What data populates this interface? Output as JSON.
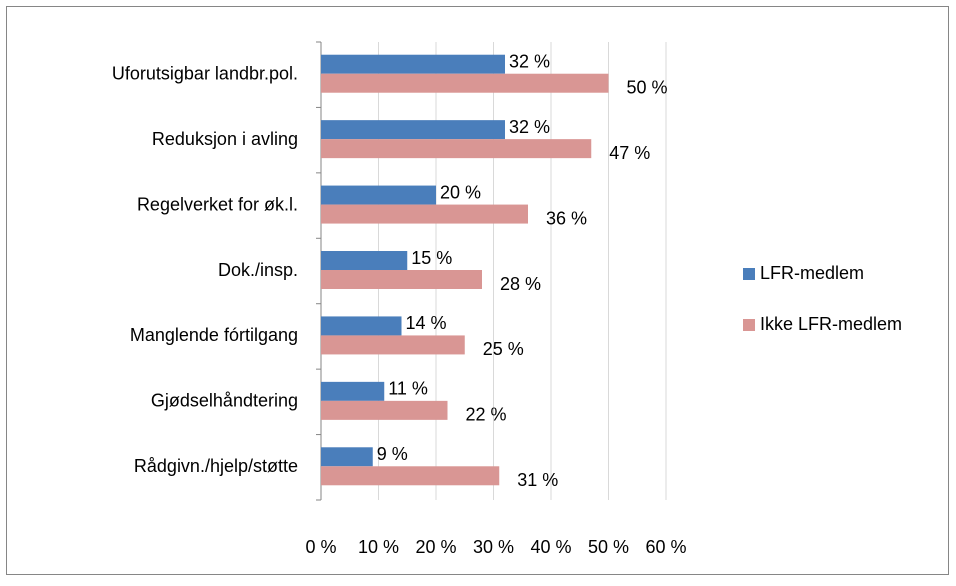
{
  "chart_data": {
    "type": "hbar",
    "categories": [
      "Uforutsigbar landbr.pol.",
      "Reduksjon i avling",
      "Regelverket for øk.l.",
      "Dok./insp.",
      "Manglende fórtilgang",
      "Gjødselhåndtering",
      "Rådgivn./hjelp/støtte"
    ],
    "series": [
      {
        "name": "LFR-medlem",
        "color": "#4a7ebb",
        "values": [
          32,
          32,
          20,
          15,
          14,
          11,
          9
        ],
        "value_labels": [
          "32 %",
          "32 %",
          "20 %",
          "15 %",
          "14 %",
          "11 %",
          "9 %"
        ]
      },
      {
        "name": "Ikke LFR-medlem",
        "color": "#d99694",
        "values": [
          50,
          47,
          36,
          28,
          25,
          22,
          31
        ],
        "value_labels": [
          "50 %",
          "47 %",
          "36 %",
          "28 %",
          "25 %",
          "22 %",
          "31 %"
        ]
      }
    ],
    "xlim": [
      0,
      60
    ],
    "xticks": [
      {
        "value": 0,
        "label": "0 %"
      },
      {
        "value": 10,
        "label": "10 %"
      },
      {
        "value": 20,
        "label": "20 %"
      },
      {
        "value": 30,
        "label": "30 %"
      },
      {
        "value": 40,
        "label": "40 %"
      },
      {
        "value": 50,
        "label": "50 %"
      },
      {
        "value": 60,
        "label": "60 %"
      }
    ],
    "grid": true,
    "legend": "right"
  }
}
